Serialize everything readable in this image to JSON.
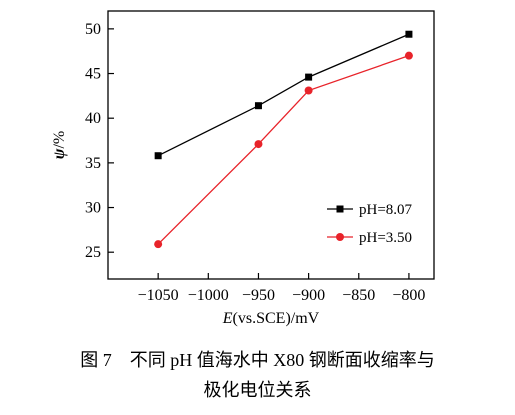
{
  "chart_data": {
    "type": "line",
    "x": [
      -1050,
      -950,
      -900,
      -800
    ],
    "series": [
      {
        "name": "pH=8.07",
        "values": [
          35.8,
          41.4,
          44.6,
          49.4
        ],
        "color": "#000000",
        "marker": "square"
      },
      {
        "name": "pH=3.50",
        "values": [
          25.9,
          37.1,
          43.1,
          47.0
        ],
        "color": "#e8232a",
        "marker": "circle"
      }
    ],
    "xlim": [
      -1100,
      -775
    ],
    "ylim": [
      22,
      52
    ],
    "xticks": [
      -1050,
      -1000,
      -950,
      -900,
      -850,
      -800
    ],
    "yticks": [
      25,
      30,
      35,
      40,
      45,
      50
    ],
    "xtick_labels": [
      "−1050",
      "−1000",
      "−950",
      "−900",
      "−850",
      "−800"
    ],
    "ytick_labels": [
      "25",
      "30",
      "35",
      "40",
      "45",
      "50"
    ],
    "xlabel": {
      "italic": "E",
      "rest": "(vs.SCE)/mV"
    },
    "ylabel": {
      "italic": "ψ",
      "rest": "/%"
    },
    "legend_position": "bottom-right",
    "grid": false
  },
  "caption": {
    "line1": "图 7　不同 pH 值海水中 X80 钢断面收缩率与",
    "line2": "极化电位关系"
  }
}
